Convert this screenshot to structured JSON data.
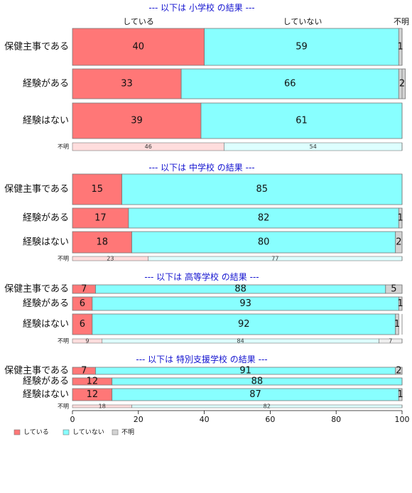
{
  "chart_data": {
    "type": "bar",
    "orientation": "horizontal-stacked",
    "series": [
      {
        "key": "s",
        "name": "している",
        "color": "#ff7777"
      },
      {
        "key": "n",
        "name": "していない",
        "color": "#88ffff"
      },
      {
        "key": "u",
        "name": "不明",
        "color": "#d3d3d3"
      }
    ],
    "column_labels": [
      "している",
      "していない",
      "不明"
    ],
    "legend_position": "bottom-left",
    "xlim": [
      0,
      100
    ],
    "xticks": [
      0,
      20,
      40,
      60,
      80,
      100
    ],
    "panels": [
      {
        "title": "--- 以下は 小学校 の結果 ---",
        "rows": [
          {
            "label": "保健主事である",
            "values": [
              40,
              59,
              1
            ]
          },
          {
            "label": "経験がある",
            "values": [
              33,
              66,
              2
            ]
          },
          {
            "label": "経験はない",
            "values": [
              39,
              61,
              0
            ]
          },
          {
            "label": "不明",
            "values": [
              46,
              54,
              0
            ],
            "minor": true
          }
        ]
      },
      {
        "title": "--- 以下は 中学校 の結果 ---",
        "rows": [
          {
            "label": "保健主事である",
            "values": [
              15,
              85,
              0
            ]
          },
          {
            "label": "経験がある",
            "values": [
              17,
              82,
              1
            ]
          },
          {
            "label": "経験はない",
            "values": [
              18,
              80,
              2
            ]
          },
          {
            "label": "不明",
            "values": [
              23,
              77,
              0
            ],
            "minor": true
          }
        ]
      },
      {
        "title": "--- 以下は 高等学校 の結果 ---",
        "rows": [
          {
            "label": "保健主事である",
            "values": [
              7,
              88,
              5
            ]
          },
          {
            "label": "経験がある",
            "values": [
              6,
              93,
              1
            ]
          },
          {
            "label": "経験はない",
            "values": [
              6,
              92,
              1
            ]
          },
          {
            "label": "不明",
            "values": [
              9,
              84,
              7
            ],
            "minor": true
          }
        ]
      },
      {
        "title": "--- 以下は 特別支援学校 の結果 ---",
        "rows": [
          {
            "label": "保健主事である",
            "values": [
              7,
              91,
              2
            ]
          },
          {
            "label": "経験がある",
            "values": [
              12,
              88,
              0
            ]
          },
          {
            "label": "経験はない",
            "values": [
              12,
              87,
              1
            ]
          },
          {
            "label": "不明",
            "values": [
              18,
              82,
              0
            ],
            "minor": true
          }
        ]
      }
    ]
  }
}
